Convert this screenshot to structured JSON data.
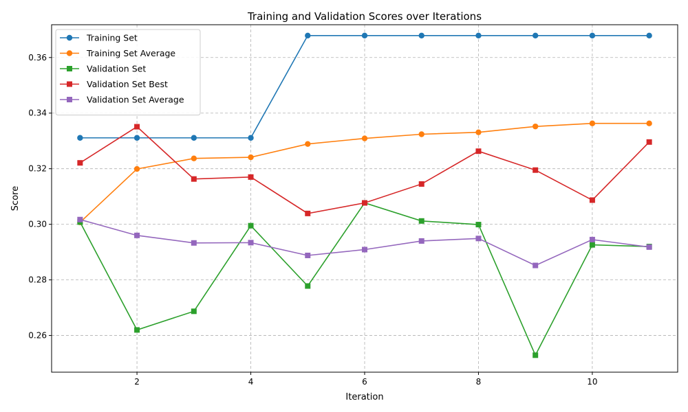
{
  "chart_data": {
    "type": "line",
    "title": "Training and Validation Scores over Iterations",
    "xlabel": "Iteration",
    "ylabel": "Score",
    "xlim": [
      0.5,
      11.5
    ],
    "ylim": [
      0.2468,
      0.3718
    ],
    "xticks": [
      2,
      4,
      6,
      8,
      10
    ],
    "yticks": [
      0.26,
      0.28,
      0.3,
      0.32,
      0.34,
      0.36
    ],
    "grid": true,
    "legend_position": "top-left",
    "x": [
      1,
      2,
      3,
      4,
      5,
      6,
      7,
      8,
      9,
      10,
      11
    ],
    "series": [
      {
        "name": "Training Set",
        "color": "#1f77b4",
        "marker": "circle",
        "values": [
          0.3311,
          0.3311,
          0.3311,
          0.3311,
          0.3679,
          0.3679,
          0.3679,
          0.3679,
          0.3679,
          0.3679,
          0.3679
        ]
      },
      {
        "name": "Training Set Average",
        "color": "#ff7f0e",
        "marker": "circle",
        "values": [
          0.3007,
          0.3199,
          0.3237,
          0.3241,
          0.3289,
          0.3309,
          0.3324,
          0.3331,
          0.3352,
          0.3363,
          0.3363
        ]
      },
      {
        "name": "Validation Set",
        "color": "#2ca02c",
        "marker": "square",
        "values": [
          0.3008,
          0.262,
          0.2687,
          0.2995,
          0.2778,
          0.3077,
          0.3012,
          0.2999,
          0.2529,
          0.2926,
          0.292
        ]
      },
      {
        "name": "Validation Set Best",
        "color": "#d62728",
        "marker": "square",
        "values": [
          0.3221,
          0.3351,
          0.3163,
          0.317,
          0.3039,
          0.3077,
          0.3145,
          0.3263,
          0.3195,
          0.3087,
          0.3296
        ]
      },
      {
        "name": "Validation Set Average",
        "color": "#9467bd",
        "marker": "square",
        "values": [
          0.3017,
          0.296,
          0.2933,
          0.2934,
          0.2888,
          0.2909,
          0.294,
          0.2949,
          0.2852,
          0.2945,
          0.2918
        ]
      }
    ]
  }
}
